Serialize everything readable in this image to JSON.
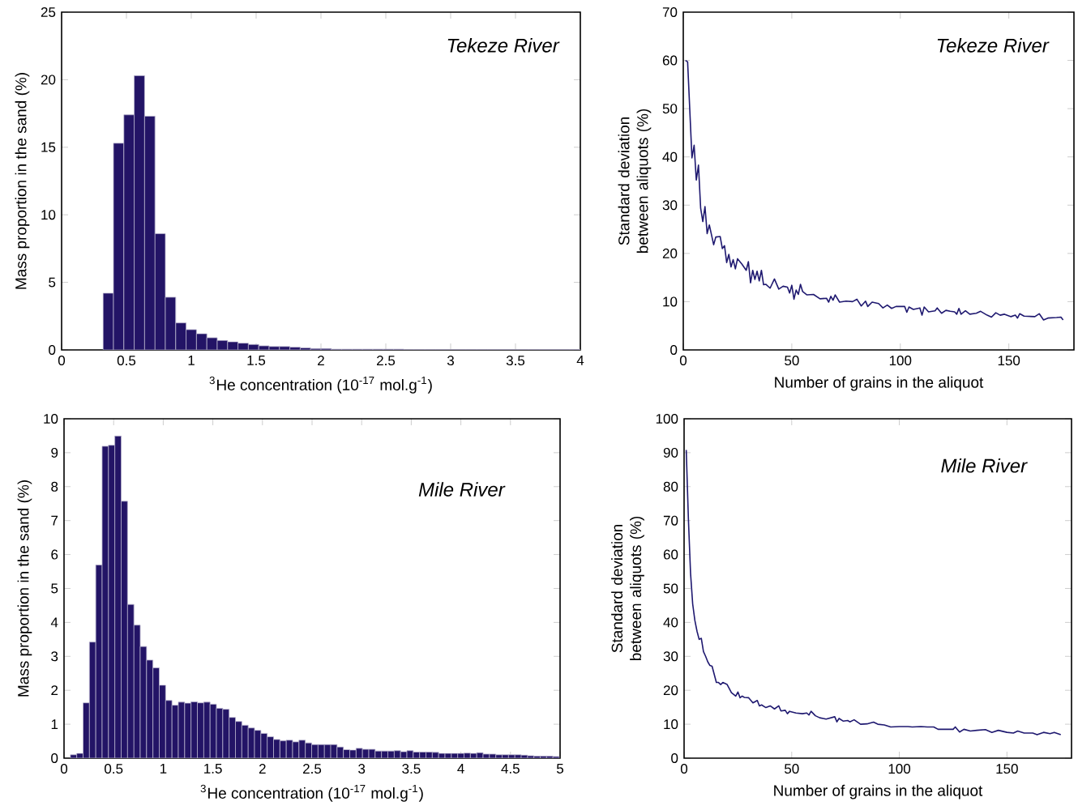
{
  "chart_data": [
    {
      "type": "histogram",
      "xlabel": "$^{3}$He concentration (10$^{-17}$ mol.g$^{-1}$)",
      "ylabel": "Mass proportion in the sand (%)",
      "annotations": [
        "Tekeze River"
      ],
      "color": "#231466",
      "bins": [
        0,
        0.08,
        0.16,
        0.24,
        0.32,
        0.4,
        0.48,
        0.56,
        0.64,
        0.72,
        0.8,
        0.88,
        0.96,
        1.04,
        1.12,
        1.2,
        1.28,
        1.36,
        1.44,
        1.52,
        1.6,
        1.68,
        1.76,
        1.84,
        1.92,
        2.0,
        2.08,
        2.16,
        2.24,
        2.32,
        2.4,
        2.48,
        2.56,
        2.64,
        2.72,
        2.8,
        2.88,
        2.96,
        3.04,
        3.12,
        3.2,
        3.28,
        3.36,
        3.44,
        3.52,
        3.6,
        3.68,
        3.76,
        3.84,
        3.92,
        4.0
      ],
      "values": [
        0,
        0,
        0,
        0,
        4.2,
        15.3,
        17.4,
        20.3,
        17.3,
        8.6,
        3.9,
        2.0,
        1.5,
        1.2,
        0.9,
        0.7,
        0.6,
        0.5,
        0.4,
        0.3,
        0.25,
        0.25,
        0.2,
        0.15,
        0.1,
        0.1,
        0.05,
        0.05,
        0.05,
        0.05,
        0.05,
        0.05,
        0.05,
        0.02,
        0.02,
        0.02,
        0.02,
        0.02,
        0.02,
        0.02,
        0.02,
        0.02,
        0.02,
        0.02,
        0.02,
        0.02,
        0.02,
        0.02,
        0.02,
        0.02
      ],
      "xlim": [
        0,
        4
      ],
      "xticks": [
        0,
        0.5,
        1,
        1.5,
        2,
        2.5,
        3,
        3.5,
        4
      ],
      "ylim": [
        0,
        25
      ],
      "yticks": [
        0,
        5,
        10,
        15,
        20,
        25
      ]
    },
    {
      "type": "line",
      "xlabel": "Number of grains in the aliquot",
      "ylabel": "Standard deviation between aliquots (%)",
      "annotations": [
        "Tekeze River"
      ],
      "color": "#1f1970",
      "x": [
        1,
        2,
        4,
        5,
        6,
        7,
        8,
        9,
        10,
        11,
        12,
        14,
        15,
        17,
        18,
        19,
        20,
        21,
        22,
        23,
        24,
        25,
        27,
        29,
        30,
        31,
        32,
        33,
        34,
        35,
        36,
        37,
        38,
        40,
        42,
        44,
        46,
        48,
        49,
        50,
        51,
        52,
        53,
        54,
        55,
        57,
        60,
        63,
        66,
        67,
        68,
        69,
        70,
        72,
        75,
        78,
        80,
        82,
        84,
        85,
        87,
        90,
        92,
        94,
        96,
        98,
        102,
        103,
        104,
        106,
        109,
        110,
        111,
        113,
        116,
        117,
        119,
        121,
        123,
        125,
        126,
        127,
        128,
        130,
        132,
        135,
        137,
        140,
        142,
        144,
        146,
        148,
        151,
        153,
        154,
        155,
        157,
        162,
        164,
        166,
        168,
        172,
        174,
        175
      ],
      "values": [
        60.0,
        59.7,
        39.8,
        42.4,
        35.2,
        38.3,
        29.4,
        26.6,
        29.7,
        24.1,
        25.9,
        21.8,
        23.4,
        23.5,
        21.0,
        21.6,
        18.1,
        19.8,
        17.2,
        18.7,
        16.8,
        18.9,
        17.8,
        16.5,
        18.3,
        13.9,
        16.5,
        14.6,
        16.3,
        14.3,
        16.5,
        13.5,
        13.6,
        12.8,
        14.7,
        12.6,
        13.2,
        13.0,
        11.8,
        13.4,
        10.5,
        12.4,
        11.5,
        13.6,
        12.1,
        11.4,
        11.5,
        10.6,
        10.7,
        9.9,
        11.1,
        10.3,
        11.4,
        9.9,
        10.1,
        10.0,
        10.5,
        9.1,
        10.1,
        9.0,
        9.9,
        9.6,
        8.7,
        9.3,
        8.6,
        9.0,
        9.0,
        7.8,
        8.9,
        8.4,
        8.7,
        7.2,
        8.9,
        7.9,
        8.1,
        8.7,
        7.6,
        8.2,
        8.0,
        7.9,
        7.4,
        8.6,
        7.4,
        8.1,
        7.4,
        7.6,
        8.0,
        7.2,
        6.8,
        7.7,
        7.2,
        7.4,
        6.9,
        7.2,
        6.6,
        7.5,
        7.0,
        6.9,
        7.5,
        6.2,
        6.6,
        6.7,
        6.8,
        6.2
      ],
      "xlim": [
        0,
        180
      ],
      "xticks": [
        0,
        50,
        100,
        150
      ],
      "ylim": [
        0,
        70
      ],
      "yticks": [
        0,
        10,
        20,
        30,
        40,
        50,
        60,
        70
      ]
    },
    {
      "type": "histogram",
      "xlabel": "$^{3}$He concentration (10$^{-17}$ mol.g$^{-1}$)",
      "ylabel": "Mass proportion in the sand (%)",
      "annotations": [
        "Mile River"
      ],
      "color": "#231466",
      "bins": [
        0,
        0.064,
        0.128,
        0.192,
        0.256,
        0.32,
        0.384,
        0.448,
        0.512,
        0.576,
        0.64,
        0.704,
        0.768,
        0.832,
        0.896,
        0.96,
        1.024,
        1.088,
        1.152,
        1.216,
        1.28,
        1.344,
        1.408,
        1.472,
        1.536,
        1.6,
        1.664,
        1.728,
        1.792,
        1.856,
        1.92,
        1.984,
        2.048,
        2.112,
        2.176,
        2.24,
        2.304,
        2.368,
        2.432,
        2.496,
        2.56,
        2.624,
        2.688,
        2.752,
        2.816,
        2.88,
        2.944,
        3.008,
        3.072,
        3.136,
        3.2,
        3.264,
        3.328,
        3.392,
        3.456,
        3.52,
        3.584,
        3.648,
        3.712,
        3.776,
        3.84,
        3.904,
        3.968,
        4.032,
        4.096,
        4.16,
        4.224,
        4.288,
        4.352,
        4.416,
        4.48,
        4.544,
        4.608,
        4.672,
        4.736,
        4.8,
        4.864,
        4.928,
        4.992
      ],
      "values": [
        0,
        0.1,
        0.14,
        1.63,
        3.42,
        5.69,
        9.19,
        9.22,
        9.49,
        7.57,
        4.53,
        3.92,
        3.29,
        2.89,
        2.66,
        2.15,
        1.7,
        1.56,
        1.65,
        1.62,
        1.66,
        1.63,
        1.65,
        1.59,
        1.47,
        1.44,
        1.2,
        1.08,
        0.97,
        0.89,
        0.82,
        0.73,
        0.63,
        0.55,
        0.51,
        0.53,
        0.48,
        0.53,
        0.45,
        0.4,
        0.4,
        0.4,
        0.4,
        0.33,
        0.25,
        0.24,
        0.29,
        0.26,
        0.26,
        0.21,
        0.21,
        0.21,
        0.22,
        0.19,
        0.22,
        0.18,
        0.18,
        0.18,
        0.17,
        0.14,
        0.14,
        0.14,
        0.14,
        0.15,
        0.14,
        0.16,
        0.12,
        0.12,
        0.1,
        0.1,
        0.1,
        0.1,
        0.09,
        0.07,
        0.06,
        0.06,
        0.06,
        0.05
      ],
      "xlim": [
        0,
        5
      ],
      "xticks": [
        0,
        0.5,
        1,
        1.5,
        2,
        2.5,
        3,
        3.5,
        4,
        4.5,
        5
      ],
      "ylim": [
        0,
        10
      ],
      "yticks": [
        0,
        1,
        2,
        3,
        4,
        5,
        6,
        7,
        8,
        9,
        10
      ]
    },
    {
      "type": "line",
      "xlabel": "Number of grains in the aliquot",
      "ylabel": "Standard deviation between aliquots (%)",
      "annotations": [
        "Mile River"
      ],
      "color": "#1f1970",
      "x": [
        1,
        2,
        3,
        4,
        5,
        6,
        7,
        8,
        9,
        10,
        11,
        12,
        13,
        15,
        16,
        17,
        18,
        20,
        22,
        24,
        25,
        26,
        27,
        28,
        30,
        32,
        34,
        35,
        36,
        38,
        40,
        42,
        44,
        45,
        47,
        48,
        49,
        52,
        55,
        57,
        58,
        59,
        61,
        63,
        66,
        70,
        71,
        72,
        74,
        76,
        77,
        79,
        82,
        85,
        88,
        90,
        93,
        96,
        100,
        104,
        106,
        110,
        113,
        116,
        118,
        122,
        125,
        126,
        128,
        130,
        133,
        136,
        140,
        143,
        146,
        150,
        153,
        155,
        158,
        162,
        164,
        167,
        170,
        172,
        175
      ],
      "values": [
        90.8,
        70.5,
        54.5,
        45.4,
        40.6,
        37.4,
        35.0,
        35.3,
        31.4,
        30.0,
        28.4,
        27.3,
        27.1,
        22.3,
        22.3,
        21.7,
        22.3,
        21.7,
        19.3,
        18.3,
        19.5,
        17.8,
        18.3,
        17.9,
        17.8,
        16.3,
        17.0,
        15.4,
        15.7,
        14.9,
        15.4,
        14.5,
        15.4,
        13.9,
        14.1,
        13.1,
        13.8,
        13.3,
        13.1,
        13.3,
        12.7,
        13.8,
        12.5,
        11.9,
        11.5,
        12.2,
        10.7,
        11.7,
        10.9,
        11.1,
        10.7,
        11.3,
        10.0,
        10.1,
        10.6,
        10.0,
        9.8,
        9.2,
        9.3,
        9.3,
        9.2,
        9.3,
        9.2,
        9.2,
        8.5,
        8.5,
        8.5,
        9.2,
        7.7,
        8.5,
        8.0,
        8.2,
        8.4,
        7.6,
        8.2,
        7.6,
        7.4,
        8.0,
        7.4,
        7.4,
        6.9,
        7.6,
        7.2,
        7.6,
        6.9
      ],
      "xlim": [
        0,
        180
      ],
      "xticks": [
        0,
        50,
        100,
        150
      ],
      "ylim": [
        0,
        100
      ],
      "yticks": [
        0,
        10,
        20,
        30,
        40,
        50,
        60,
        70,
        80,
        90,
        100
      ]
    }
  ]
}
